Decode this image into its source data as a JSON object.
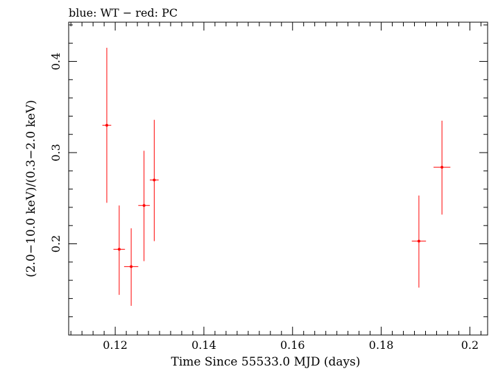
{
  "chart_data": {
    "type": "scatter",
    "title": "blue: WT − red: PC",
    "xlabel": "Time Since 55533.0 MJD (days)",
    "ylabel": "(2.0−10.0 keV)/(0.3−2.0 keV)",
    "xlim": [
      0.1095,
      0.204
    ],
    "ylim": [
      0.1,
      0.443
    ],
    "x_ticks": [
      0.12,
      0.14,
      0.16,
      0.18,
      0.2
    ],
    "x_tick_labels": [
      "0.12",
      "0.14",
      "0.16",
      "0.18",
      "0.2"
    ],
    "y_ticks": [
      0.2,
      0.3,
      0.4
    ],
    "y_tick_labels": [
      "0.2",
      "0.3",
      "0.4"
    ],
    "grid": false,
    "series": [
      {
        "color": "#ff0000",
        "points": [
          {
            "x": 0.1181,
            "y": 0.33,
            "xerr": 0.001,
            "ylo": 0.245,
            "yhi": 0.415
          },
          {
            "x": 0.1209,
            "y": 0.194,
            "xerr": 0.0013,
            "ylo": 0.144,
            "yhi": 0.242
          },
          {
            "x": 0.1236,
            "y": 0.175,
            "xerr": 0.0016,
            "ylo": 0.132,
            "yhi": 0.217
          },
          {
            "x": 0.1265,
            "y": 0.242,
            "xerr": 0.0013,
            "ylo": 0.181,
            "yhi": 0.302
          },
          {
            "x": 0.1288,
            "y": 0.27,
            "xerr": 0.001,
            "ylo": 0.203,
            "yhi": 0.336
          },
          {
            "x": 0.1885,
            "y": 0.203,
            "xerr": 0.0016,
            "ylo": 0.152,
            "yhi": 0.253
          },
          {
            "x": 0.1937,
            "y": 0.284,
            "xerr": 0.0019,
            "ylo": 0.232,
            "yhi": 0.335
          }
        ]
      }
    ]
  }
}
